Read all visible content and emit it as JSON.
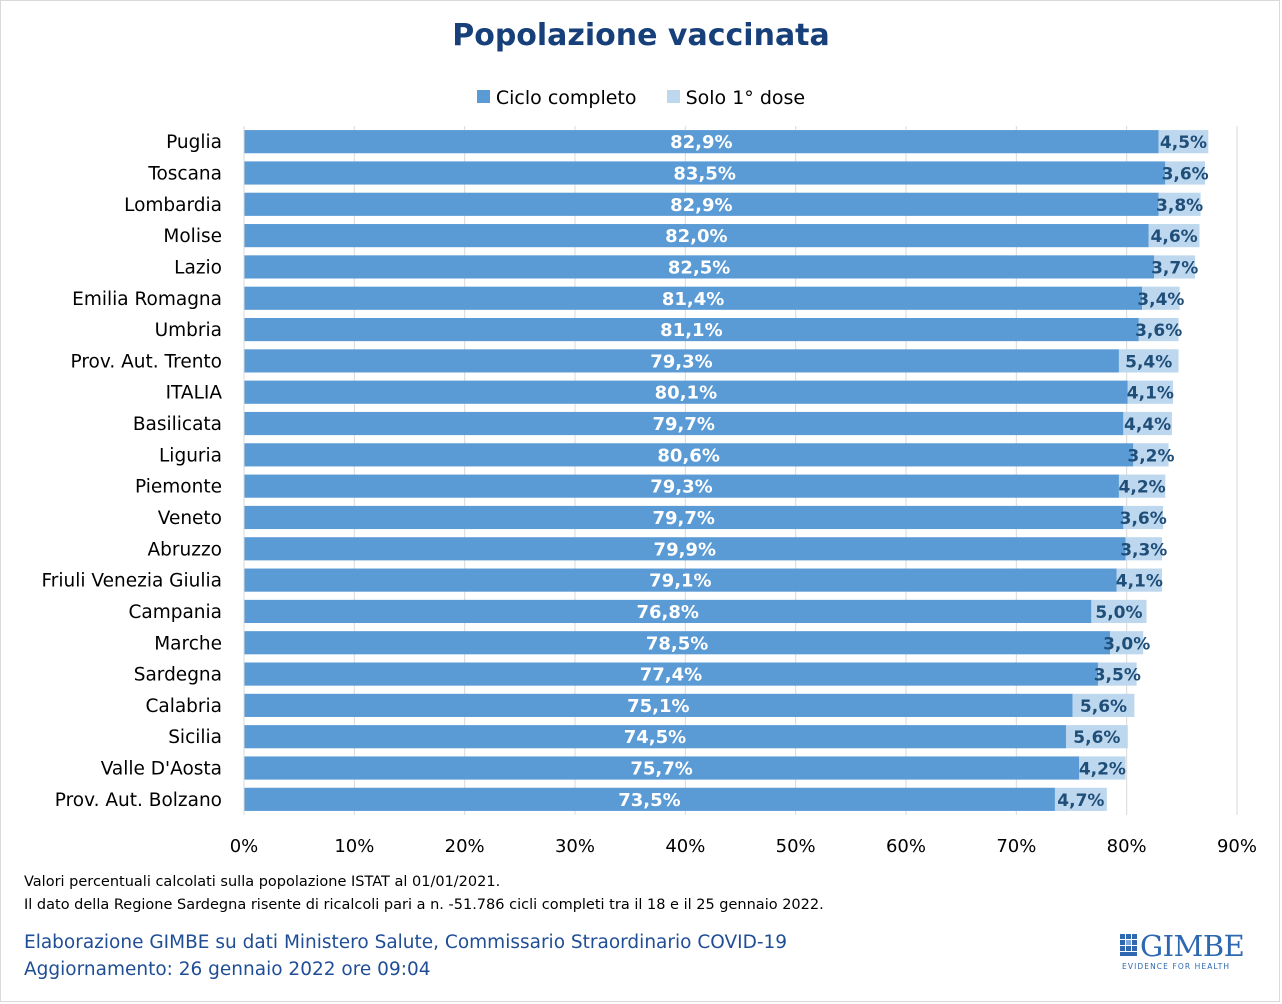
{
  "chart_data": {
    "type": "bar",
    "orientation": "horizontal",
    "stacked": true,
    "title": "Popolazione vaccinata",
    "xlabel": "",
    "ylabel": "",
    "xlim": [
      0,
      90
    ],
    "xticks": [
      "0%",
      "10%",
      "20%",
      "30%",
      "40%",
      "50%",
      "60%",
      "70%",
      "80%",
      "90%"
    ],
    "grid": true,
    "legend_position": "top-center",
    "categories": [
      "Puglia",
      "Toscana",
      "Lombardia",
      "Molise",
      "Lazio",
      "Emilia Romagna",
      "Umbria",
      "Prov. Aut. Trento",
      "ITALIA",
      "Basilicata",
      "Liguria",
      "Piemonte",
      "Veneto",
      "Abruzzo",
      "Friuli Venezia Giulia",
      "Campania",
      "Marche",
      "Sardegna",
      "Calabria",
      "Sicilia",
      "Valle D'Aosta",
      "Prov. Aut. Bolzano"
    ],
    "series": [
      {
        "name": "Ciclo completo",
        "color": "#5b9bd5",
        "values": [
          82.9,
          83.5,
          82.9,
          82.0,
          82.5,
          81.4,
          81.1,
          79.3,
          80.1,
          79.7,
          80.6,
          79.3,
          79.7,
          79.9,
          79.1,
          76.8,
          78.5,
          77.4,
          75.1,
          74.5,
          75.7,
          73.5
        ],
        "labels": [
          "82,9%",
          "83,5%",
          "82,9%",
          "82,0%",
          "82,5%",
          "81,4%",
          "81,1%",
          "79,3%",
          "80,1%",
          "79,7%",
          "80,6%",
          "79,3%",
          "79,7%",
          "79,9%",
          "79,1%",
          "76,8%",
          "78,5%",
          "77,4%",
          "75,1%",
          "74,5%",
          "75,7%",
          "73,5%"
        ]
      },
      {
        "name": "Solo 1° dose",
        "color": "#bdd7ee",
        "values": [
          4.5,
          3.6,
          3.8,
          4.6,
          3.7,
          3.4,
          3.6,
          5.4,
          4.1,
          4.4,
          3.2,
          4.2,
          3.6,
          3.3,
          4.1,
          5.0,
          3.0,
          3.5,
          5.6,
          5.6,
          4.2,
          4.7
        ],
        "labels": [
          "4,5%",
          "3,6%",
          "3,8%",
          "4,6%",
          "3,7%",
          "3,4%",
          "3,6%",
          "5,4%",
          "4,1%",
          "4,4%",
          "3,2%",
          "4,2%",
          "3,6%",
          "3,3%",
          "4,1%",
          "5,0%",
          "3,0%",
          "3,5%",
          "5,6%",
          "5,6%",
          "4,2%",
          "4,7%"
        ]
      }
    ]
  },
  "legend": {
    "ciclo_completo": "Ciclo completo",
    "solo_prima_dose": "Solo 1° dose"
  },
  "notes": {
    "line1": "Valori percentuali calcolati sulla popolazione ISTAT al 01/01/2021.",
    "line2": "Il dato della Regione Sardegna risente di ricalcoli pari a n. -51.786 cicli completi tra il 18 e il 25 gennaio 2022."
  },
  "credits": {
    "line1": "Elaborazione GIMBE su dati Ministero Salute, Commissario Straordinario COVID-19",
    "line2": "Aggiornamento: 26 gennaio 2022 ore 09:04"
  },
  "logo": {
    "name": "GIMBE",
    "tagline": "EVIDENCE FOR HEALTH"
  },
  "colors": {
    "title": "#17407a",
    "primary_bar": "#5b9bd5",
    "secondary_bar": "#bdd7ee",
    "secondary_label": "#1f4e79",
    "credit": "#1f4e96",
    "grid": "#d9d9d9"
  }
}
